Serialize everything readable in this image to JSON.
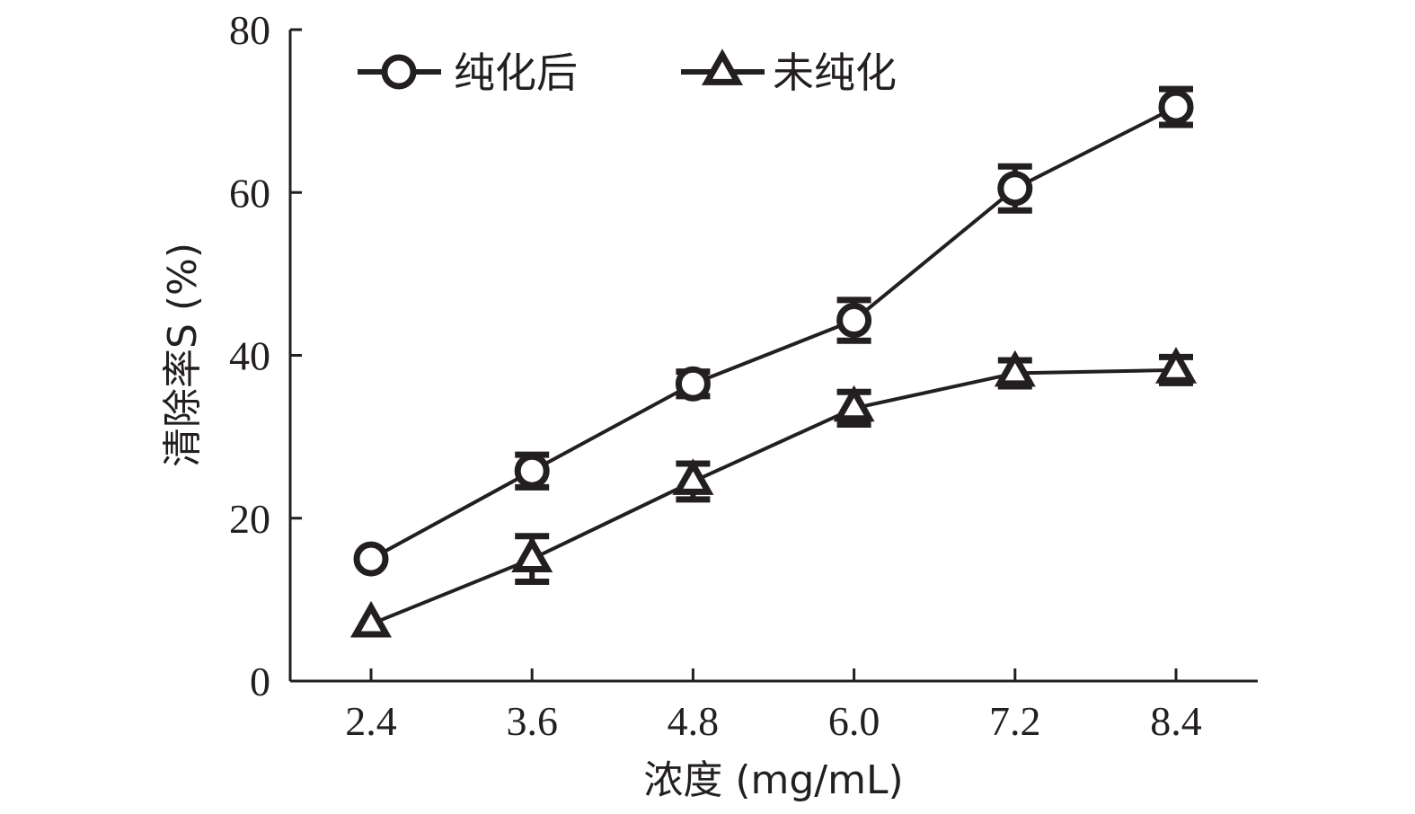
{
  "chart_data": {
    "type": "line",
    "x": [
      "2.4",
      "3.6",
      "4.8",
      "6.0",
      "7.2",
      "8.4"
    ],
    "xlabel": "浓度 (mg/mL)",
    "ylabel": "清除率S (%)",
    "ylim": [
      0,
      80
    ],
    "yticks": [
      "0",
      "20",
      "40",
      "60",
      "80"
    ],
    "legend_position": "top-left",
    "grid": false,
    "series": [
      {
        "name": "纯化后",
        "marker": "circle",
        "values": [
          15.0,
          25.8,
          36.5,
          44.3,
          60.5,
          70.5
        ],
        "errors": [
          0.0,
          2.0,
          1.5,
          2.5,
          2.7,
          2.2
        ]
      },
      {
        "name": "未纯化",
        "marker": "triangle",
        "values": [
          7.0,
          15.0,
          24.5,
          33.5,
          37.8,
          38.2
        ],
        "errors": [
          0.0,
          2.8,
          2.2,
          2.0,
          1.6,
          1.6
        ]
      }
    ],
    "colors": {
      "line": "#231f20",
      "axis": "#231f20",
      "background": "#ffffff"
    }
  }
}
